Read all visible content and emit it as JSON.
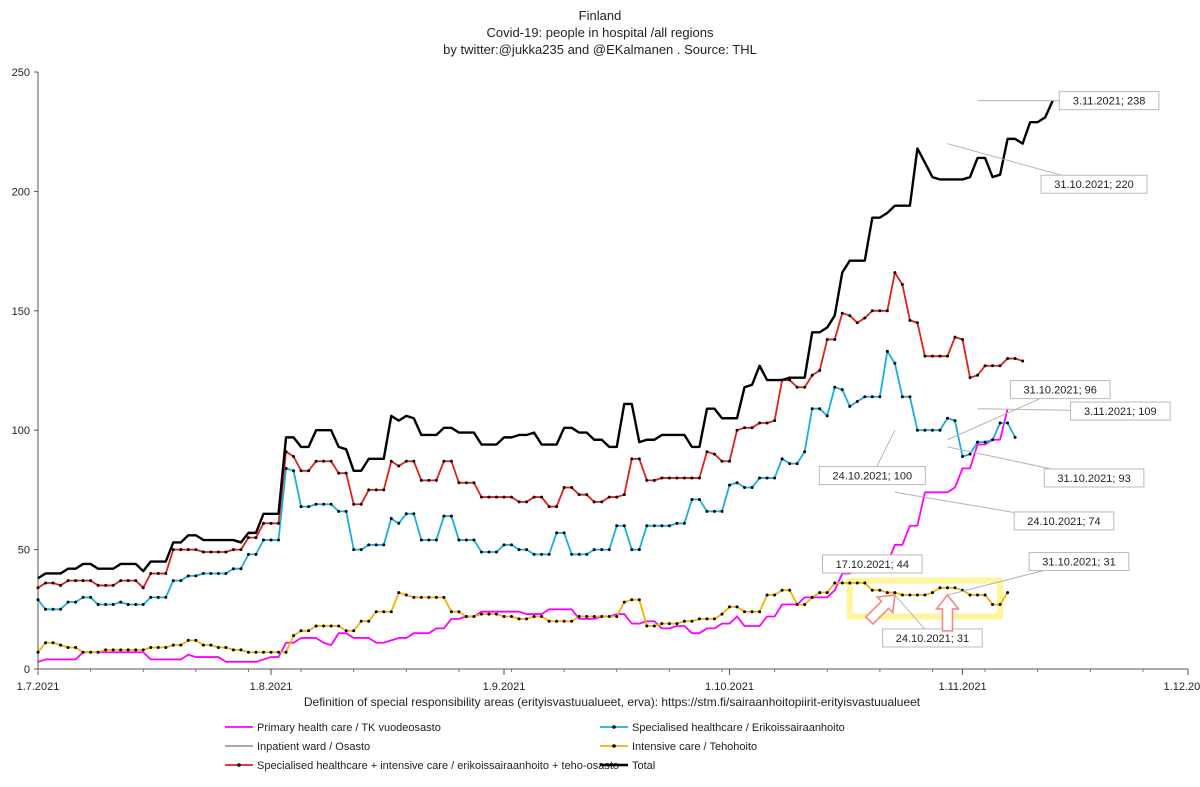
{
  "chart_data": {
    "type": "line",
    "title_lines": [
      "Finland",
      "Covid-19: people in hospital /all regions",
      "by twitter:@jukka235  and @EKalmanen . Source: THL"
    ],
    "xlabel": "Definition of special responsibility areas (erityisvastuualueet, erva):  https://stm.fi/sairaanhoitopiirit-erityisvastuualueet",
    "ylabel": "",
    "ylim": [
      0,
      250
    ],
    "yticks": [
      0,
      50,
      100,
      150,
      200,
      250
    ],
    "x_range_days": [
      0,
      153
    ],
    "x_ticks": [
      {
        "label": "1.7.2021",
        "day": 0
      },
      {
        "label": "1.8.2021",
        "day": 31
      },
      {
        "label": "1.9.2021",
        "day": 62
      },
      {
        "label": "1.10.2021",
        "day": 92
      },
      {
        "label": "1.11.2021",
        "day": 123
      },
      {
        "label": "1.12.2021",
        "day": 153
      }
    ],
    "series": [
      {
        "name": "Primary health care / TK vuodeosasto",
        "color": "#ff00ff",
        "markers": false,
        "values": [
          3,
          4,
          4,
          4,
          4,
          4,
          7,
          7,
          7,
          7,
          7,
          7,
          7,
          7,
          7,
          4,
          4,
          4,
          4,
          4,
          6,
          5,
          5,
          5,
          5,
          3,
          3,
          3,
          3,
          3,
          4,
          5,
          5,
          11,
          11,
          13,
          13,
          13,
          11,
          10,
          15,
          15,
          13,
          13,
          13,
          11,
          11,
          12,
          13,
          13,
          15,
          15,
          15,
          17,
          17,
          21,
          21,
          22,
          22,
          24,
          24,
          24,
          24,
          24,
          24,
          23,
          23,
          23,
          25,
          25,
          25,
          25,
          21,
          21,
          21,
          22,
          22,
          23,
          23,
          19,
          19,
          20,
          20,
          17,
          17,
          18,
          18,
          15,
          15,
          17,
          17,
          19,
          19,
          22,
          18,
          18,
          18,
          22,
          22,
          27,
          27,
          27,
          30,
          30,
          30,
          30,
          33,
          40,
          40,
          43,
          43,
          44,
          44,
          44,
          52,
          52,
          60,
          60,
          74,
          74,
          74,
          74,
          76,
          84,
          84,
          94,
          94,
          96,
          96,
          109
        ]
      },
      {
        "name": "Specialised healthcare / Erikoissairaanhoito",
        "color": "#1aaee0",
        "markers": true,
        "values": [
          29,
          25,
          25,
          25,
          28,
          28,
          30,
          30,
          27,
          27,
          27,
          28,
          27,
          27,
          27,
          30,
          30,
          30,
          37,
          37,
          39,
          39,
          40,
          40,
          40,
          40,
          42,
          42,
          48,
          48,
          54,
          54,
          54,
          84,
          83,
          68,
          68,
          69,
          69,
          69,
          66,
          66,
          50,
          50,
          52,
          52,
          52,
          63,
          61,
          65,
          65,
          54,
          54,
          54,
          64,
          64,
          54,
          54,
          54,
          49,
          49,
          49,
          52,
          52,
          50,
          50,
          48,
          48,
          48,
          57,
          57,
          48,
          48,
          48,
          50,
          50,
          50,
          60,
          60,
          50,
          50,
          60,
          60,
          60,
          60,
          61,
          61,
          71,
          71,
          66,
          66,
          66,
          77,
          78,
          76,
          76,
          80,
          80,
          80,
          88,
          86,
          86,
          91,
          109,
          109,
          106,
          118,
          117,
          110,
          112,
          114,
          114,
          114,
          133,
          128,
          114,
          114,
          100,
          100,
          100,
          100,
          105,
          104,
          89,
          90,
          95,
          95,
          96,
          103,
          103,
          97
        ]
      },
      {
        "name": "Inpatient ward / Osasto",
        "color": "#9e9e9e",
        "markers": false,
        "values": []
      },
      {
        "name": "Intensive care / Tehohoito",
        "color": "#f2b200",
        "markers": true,
        "values": [
          7,
          11,
          11,
          10,
          9,
          9,
          7,
          7,
          7,
          8,
          8,
          8,
          8,
          8,
          8,
          9,
          9,
          9,
          10,
          10,
          12,
          12,
          10,
          10,
          9,
          9,
          8,
          8,
          7,
          7,
          7,
          7,
          7,
          7,
          14,
          16,
          16,
          18,
          18,
          18,
          18,
          16,
          16,
          20,
          20,
          24,
          24,
          24,
          32,
          31,
          30,
          30,
          30,
          30,
          30,
          24,
          24,
          22,
          22,
          23,
          23,
          23,
          22,
          22,
          21,
          21,
          22,
          22,
          20,
          20,
          20,
          20,
          22,
          22,
          22,
          22,
          22,
          22,
          28,
          29,
          29,
          18,
          18,
          19,
          19,
          19,
          20,
          20,
          21,
          21,
          21,
          23,
          26,
          26,
          24,
          24,
          24,
          31,
          31,
          33,
          33,
          27,
          27,
          30,
          32,
          32,
          36,
          36,
          36,
          36,
          36,
          33,
          33,
          32,
          32,
          31,
          31,
          31,
          31,
          32,
          34,
          34,
          34,
          33,
          31,
          31,
          31,
          27,
          27,
          32
        ]
      },
      {
        "name": "Specialised healthcare + intensive care / erikoissairaanhoito + teho-osasto",
        "color": "#e0201b",
        "markers": true,
        "values": [
          34,
          36,
          36,
          35,
          37,
          37,
          37,
          37,
          35,
          35,
          35,
          37,
          37,
          37,
          34,
          40,
          40,
          40,
          50,
          50,
          50,
          50,
          49,
          49,
          49,
          49,
          50,
          50,
          55,
          55,
          61,
          61,
          61,
          91,
          89,
          83,
          83,
          87,
          87,
          87,
          82,
          82,
          69,
          69,
          75,
          75,
          75,
          87,
          85,
          87,
          87,
          79,
          79,
          79,
          87,
          87,
          78,
          78,
          78,
          72,
          72,
          72,
          72,
          72,
          70,
          70,
          72,
          72,
          68,
          68,
          76,
          76,
          73,
          73,
          70,
          70,
          72,
          72,
          73,
          88,
          88,
          79,
          79,
          80,
          80,
          80,
          80,
          80,
          80,
          91,
          90,
          87,
          87,
          100,
          101,
          101,
          103,
          103,
          104,
          121,
          121,
          118,
          118,
          123,
          125,
          138,
          138,
          149,
          148,
          145,
          147,
          150,
          150,
          150,
          166,
          161,
          146,
          145,
          131,
          131,
          131,
          131,
          139,
          138,
          122,
          123,
          127,
          127,
          127,
          130,
          130,
          129
        ]
      },
      {
        "name": "Total",
        "color": "#000000",
        "markers": false,
        "values": [
          38,
          40,
          40,
          40,
          42,
          42,
          44,
          44,
          42,
          42,
          42,
          44,
          44,
          44,
          41,
          45,
          45,
          45,
          53,
          53,
          56,
          56,
          54,
          54,
          54,
          54,
          54,
          53,
          57,
          57,
          65,
          65,
          65,
          97,
          97,
          93,
          93,
          100,
          100,
          100,
          93,
          92,
          83,
          83,
          88,
          88,
          88,
          106,
          104,
          106,
          105,
          98,
          98,
          98,
          101,
          101,
          99,
          99,
          99,
          94,
          94,
          94,
          97,
          97,
          98,
          98,
          99,
          94,
          94,
          94,
          101,
          101,
          99,
          99,
          96,
          96,
          93,
          93,
          111,
          111,
          95,
          96,
          96,
          98,
          98,
          98,
          98,
          93,
          93,
          109,
          109,
          105,
          105,
          105,
          118,
          119,
          127,
          121,
          121,
          121,
          122,
          122,
          122,
          141,
          141,
          143,
          148,
          166,
          171,
          171,
          171,
          189,
          189,
          191,
          194,
          194,
          194,
          218,
          212,
          206,
          205,
          205,
          205,
          205,
          206,
          214,
          214,
          206,
          207,
          222,
          222,
          220,
          229,
          229,
          231,
          238
        ]
      }
    ],
    "annotations": [
      {
        "label": "3.11.2021; 238"
      },
      {
        "label": "31.10.2021; 220"
      },
      {
        "label": "31.10.2021; 96"
      },
      {
        "label": "3.11.2021; 109"
      },
      {
        "label": "24.10.2021; 100"
      },
      {
        "label": "31.10.2021; 93"
      },
      {
        "label": "24.10.2021; 74"
      },
      {
        "label": "17.10.2021; 44"
      },
      {
        "label": "31.10.2021; 31"
      },
      {
        "label": "24.10.2021; 31"
      }
    ],
    "legend": {
      "placement": "bottom",
      "entries": [
        "Primary health care / TK vuodeosasto",
        "Specialised healthcare / Erikoissairaanhoito",
        "Inpatient ward / Osasto",
        "Intensive care / Tehohoito",
        "Specialised healthcare + intensive care / erikoissairaanhoito + teho-osasto",
        "Total"
      ]
    },
    "highlight_box_color": "#fff59a",
    "arrow_color": "#f08a8a"
  }
}
